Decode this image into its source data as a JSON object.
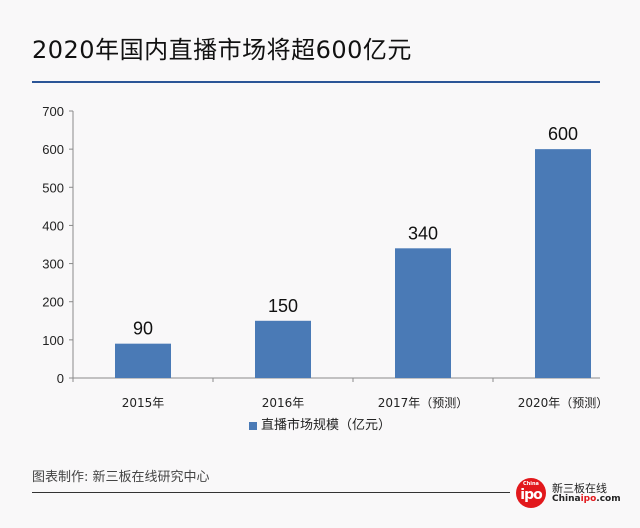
{
  "title": "2020年国内直播市场将超600亿元",
  "colors": {
    "bar": "#4a7ab6",
    "title_rule": "#2b5597",
    "logo_red": "#e2181c"
  },
  "chart_data": {
    "type": "bar",
    "title": "2020年国内直播市场将超600亿元",
    "categories": [
      "2015年",
      "2016年",
      "2017年（预测）",
      "2020年（预测）"
    ],
    "series": [
      {
        "name": "直播市场规模（亿元）",
        "values": [
          90,
          150,
          340,
          600
        ]
      }
    ],
    "data_labels": [
      "90",
      "150",
      "340",
      "600"
    ],
    "xlabel": "",
    "ylabel": "",
    "ylim": [
      0,
      700
    ],
    "yticks": [
      0,
      100,
      200,
      300,
      400,
      500,
      600,
      700
    ],
    "ytick_labels": [
      "0",
      "100",
      "200",
      "300",
      "400",
      "500",
      "600",
      "700"
    ],
    "grid": false,
    "legend": "bottom-center"
  },
  "legend": {
    "label": "直播市场规模（亿元）"
  },
  "footer": {
    "credit": "图表制作: 新三板在线研究中心"
  },
  "logo": {
    "badge_small": "China",
    "badge_big": "ipo",
    "name_cn": "新三板在线",
    "name_en_a": "China",
    "name_en_b": "ipo",
    "name_en_c": ".com"
  }
}
